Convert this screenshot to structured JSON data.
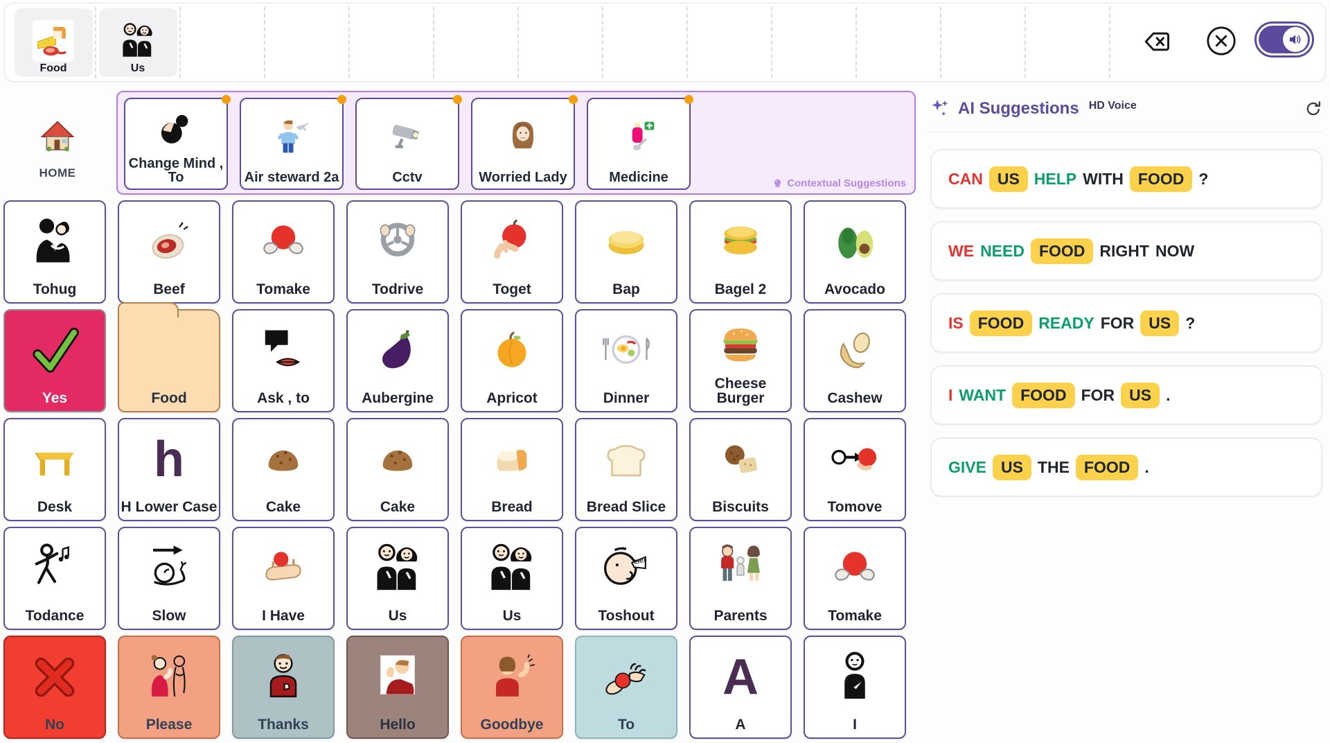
{
  "theme": {
    "purple": "#5b4a9e",
    "ctx_bg": "#f5ebfd",
    "ctx_border": "#b37de8",
    "chip_bg": "#fcd14b",
    "red": "#e3342f",
    "green": "#0b9e6a",
    "text_dark": "#20262e",
    "dot_orange": "#f59e0b"
  },
  "sentence_bar": {
    "slots": [
      {
        "label": "Food",
        "icon": "food-meal",
        "icon_box": true
      },
      {
        "label": "Us",
        "icon": "us-people",
        "icon_box": false
      }
    ],
    "empty_slot_count": 11,
    "controls": {
      "backspace_icon": "backspace",
      "clear_icon": "clear-circle-x",
      "speak_icon": "speaker"
    }
  },
  "home": {
    "label": "HOME",
    "icon": "house"
  },
  "contextual": {
    "caption": "Contextual Suggestions",
    "caption_icon": "crystal-ball",
    "cells": [
      {
        "label": "Change Mind , To",
        "icon": "change-mind"
      },
      {
        "label": "Air steward 2a",
        "icon": "air-steward"
      },
      {
        "label": "Cctv",
        "icon": "cctv"
      },
      {
        "label": "Worried Lady",
        "icon": "worried-lady"
      },
      {
        "label": "Medicine",
        "icon": "medicine"
      }
    ]
  },
  "grid": {
    "defaults": {
      "bg": "#ffffff",
      "border": "#5f4f9e",
      "label_color": "#1f2430"
    },
    "cells": [
      {
        "label": "Tohug",
        "icon": "hug"
      },
      {
        "label": "Beef",
        "icon": "beef"
      },
      {
        "label": "Tomake",
        "icon": "hands-ball"
      },
      {
        "label": "Todrive",
        "icon": "steering"
      },
      {
        "label": "Toget",
        "icon": "grab-apple"
      },
      {
        "label": "Bap",
        "icon": "bap"
      },
      {
        "label": "Bagel 2",
        "icon": "bagel"
      },
      {
        "label": "Avocado",
        "icon": "avocado"
      },
      {
        "label": "Yes",
        "icon": "check",
        "bg": "#e42a62",
        "border": "#8e8e96",
        "label_color": "#ffffff"
      },
      {
        "label": "Food",
        "icon": "folder",
        "folder": true,
        "bg": "#fcdcb0",
        "border": "#b0824f",
        "label_color": "#27303f"
      },
      {
        "label": "Ask , to",
        "icon": "speech-ask"
      },
      {
        "label": "Aubergine",
        "icon": "aubergine"
      },
      {
        "label": "Apricot",
        "icon": "apricot"
      },
      {
        "label": "Dinner",
        "icon": "dinner"
      },
      {
        "label": "Cheese Burger",
        "icon": "burger"
      },
      {
        "label": "Cashew",
        "icon": "cashew"
      },
      {
        "label": "Desk",
        "icon": "desk"
      },
      {
        "label": "H Lower Case",
        "icon": "letter",
        "glyph": "h"
      },
      {
        "label": "Cake",
        "icon": "cake-dome"
      },
      {
        "label": "Cake",
        "icon": "cake-dome"
      },
      {
        "label": "Bread",
        "icon": "bread-loaf"
      },
      {
        "label": "Bread Slice",
        "icon": "bread-slice"
      },
      {
        "label": "Biscuits",
        "icon": "biscuits"
      },
      {
        "label": "Tomove",
        "icon": "push-ball"
      },
      {
        "label": "Todance",
        "icon": "dance"
      },
      {
        "label": "Slow",
        "icon": "snail-slow"
      },
      {
        "label": "I Have",
        "icon": "palm-ball"
      },
      {
        "label": "Us",
        "icon": "us-people"
      },
      {
        "label": "Us",
        "icon": "us-people"
      },
      {
        "label": "Toshout",
        "icon": "shout"
      },
      {
        "label": "Parents",
        "icon": "parents"
      },
      {
        "label": "Tomake",
        "icon": "hands-ball"
      },
      {
        "label": "No",
        "icon": "no-x",
        "bg": "#f23d31",
        "border": "#b3261e",
        "label_color": "#334051"
      },
      {
        "label": "Please",
        "icon": "please-two",
        "bg": "#f2a183",
        "border": "#c0734a",
        "label_color": "#334051"
      },
      {
        "label": "Thanks",
        "icon": "thanks-boy",
        "bg": "#aec1c5",
        "border": "#7f9aa0",
        "label_color": "#334051"
      },
      {
        "label": "Hello",
        "icon": "hello-wave",
        "bg": "#9c837c",
        "border": "#6e564e",
        "label_color": "#2b333f"
      },
      {
        "label": "Goodbye",
        "icon": "goodbye-wave",
        "bg": "#f2a183",
        "border": "#c0734a",
        "label_color": "#334051"
      },
      {
        "label": "To",
        "icon": "give-ball",
        "bg": "#bedce0",
        "border": "#8fb4b9",
        "label_color": "#334051"
      },
      {
        "label": "A",
        "icon": "letter",
        "glyph": "A"
      },
      {
        "label": "I",
        "icon": "i-self"
      }
    ]
  },
  "ai_panel": {
    "title": "AI Suggestions",
    "badge": "HD Voice",
    "title_icon": "sparkles",
    "refresh_icon": "refresh",
    "suggestions": [
      [
        {
          "t": "CAN",
          "c": "red"
        },
        {
          "t": "US",
          "c": "chip"
        },
        {
          "t": "HELP",
          "c": "green"
        },
        {
          "t": "WITH",
          "c": "plain"
        },
        {
          "t": "FOOD",
          "c": "chip"
        },
        {
          "t": "?",
          "c": "plain"
        }
      ],
      [
        {
          "t": "WE",
          "c": "red"
        },
        {
          "t": "NEED",
          "c": "green"
        },
        {
          "t": "FOOD",
          "c": "chip"
        },
        {
          "t": "RIGHT",
          "c": "plain"
        },
        {
          "t": "NOW",
          "c": "plain"
        }
      ],
      [
        {
          "t": "IS",
          "c": "red"
        },
        {
          "t": "FOOD",
          "c": "chip"
        },
        {
          "t": "READY",
          "c": "green"
        },
        {
          "t": "FOR",
          "c": "plain"
        },
        {
          "t": "US",
          "c": "chip"
        },
        {
          "t": "?",
          "c": "plain"
        }
      ],
      [
        {
          "t": "I",
          "c": "red"
        },
        {
          "t": "WANT",
          "c": "green"
        },
        {
          "t": "FOOD",
          "c": "chip"
        },
        {
          "t": "FOR",
          "c": "plain"
        },
        {
          "t": "US",
          "c": "chip"
        },
        {
          "t": ".",
          "c": "plain"
        }
      ],
      [
        {
          "t": "GIVE",
          "c": "green"
        },
        {
          "t": "US",
          "c": "chip"
        },
        {
          "t": "THE",
          "c": "plain"
        },
        {
          "t": "FOOD",
          "c": "chip"
        },
        {
          "t": ".",
          "c": "plain"
        }
      ]
    ]
  }
}
